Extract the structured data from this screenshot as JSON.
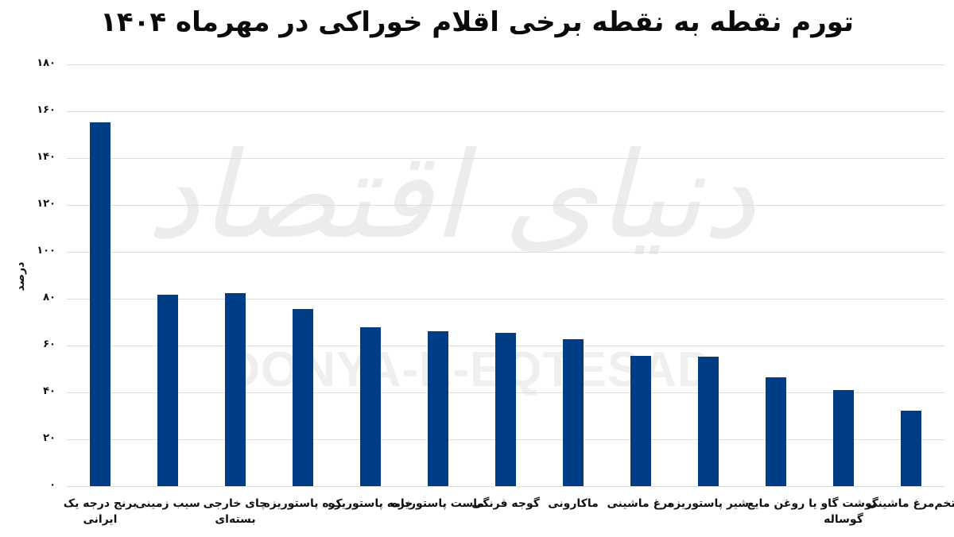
{
  "header": {
    "title": "تورم نقطه به نقطه برخی اقلام خوراکی در مهرماه ۱۴۰۴"
  },
  "watermark": {
    "persian": "دنیای اقتصاد",
    "latin": "DONYA-E-EQTESAD"
  },
  "axis": {
    "ylabel": "درصد",
    "yticks": [
      "۰",
      "۲۰",
      "۴۰",
      "۶۰",
      "۸۰",
      "۱۰۰",
      "۱۲۰",
      "۱۴۰",
      "۱۶۰",
      "۱۸۰"
    ]
  },
  "colors": {
    "bar": "#003d84",
    "grid": "#dedede",
    "watermark": "#ececec"
  },
  "chart_data": {
    "type": "bar",
    "title": "تورم نقطه به نقطه برخی اقلام خوراکی در مهرماه ۱۴۰۴",
    "xlabel": "",
    "ylabel": "درصد",
    "ylim": [
      0,
      180
    ],
    "yticks": [
      0,
      20,
      40,
      60,
      80,
      100,
      120,
      140,
      160,
      180
    ],
    "grid": true,
    "legend": null,
    "categories": [
      "برنج درجه یک ایرانی",
      "سیب زمینی",
      "چای خارجی بسته‌ای",
      "کره پاستوریزه",
      "خامه پاستوریزه",
      "ماست پاستوریزه",
      "گوجه فرنگی",
      "ماکارونی",
      "مرغ ماشینی",
      "شیر پاستوریزه",
      "روغن مایع",
      "گوشت گاو یا گوساله",
      "تخم‌مرغ ماشینی"
    ],
    "values": [
      155.4,
      81.7,
      82.5,
      75.6,
      67.8,
      66.2,
      65.4,
      62.6,
      55.6,
      55.2,
      46.6,
      41.1,
      32.3
    ]
  }
}
